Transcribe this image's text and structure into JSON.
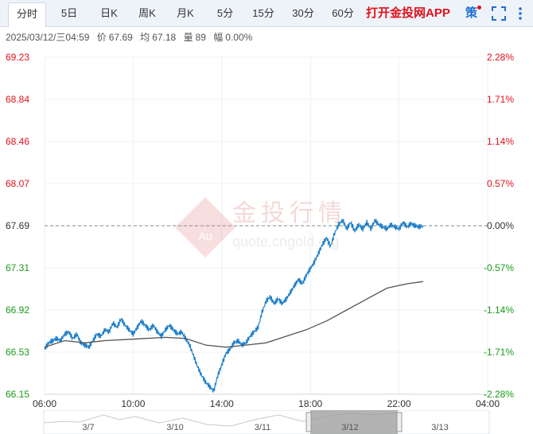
{
  "tabs": [
    {
      "label": "分时",
      "active": true
    },
    {
      "label": "5日"
    },
    {
      "label": "日K"
    },
    {
      "label": "周K"
    },
    {
      "label": "月K"
    },
    {
      "label": "5分"
    },
    {
      "label": "15分"
    },
    {
      "label": "30分"
    },
    {
      "label": "60分"
    }
  ],
  "header": {
    "app_link": "打开金投网APP",
    "strategy_label": "策"
  },
  "info": {
    "datetime": "2025/03/12/三04:59",
    "price_label": "价",
    "price": "67.69",
    "avg_label": "均",
    "avg": "67.18",
    "volume_label": "量",
    "volume": "89",
    "change_label": "幅",
    "change": "0.00%"
  },
  "watermark": {
    "logo_text": "Au",
    "brand": "金投行情",
    "url": "quote.cngold.org"
  },
  "colors": {
    "up": "#e0111a",
    "down": "#1a9a1a",
    "price_line": "#1f7fc8",
    "avg_line": "#555555",
    "reference": "#333333"
  },
  "chart_data": {
    "type": "line",
    "y_ticks_left": [
      "69.23",
      "68.84",
      "68.46",
      "68.07",
      "67.69",
      "67.31",
      "66.92",
      "66.53",
      "66.15"
    ],
    "y_ticks_right": [
      "2.28%",
      "1.71%",
      "1.14%",
      "0.57%",
      "0.00%",
      "-0.57%",
      "-1.14%",
      "-1.71%",
      "-2.28%"
    ],
    "x_ticks": [
      "06:00",
      "10:00",
      "14:00",
      "18:00",
      "22:00",
      "04:00"
    ],
    "ylim": [
      66.15,
      69.23
    ],
    "reference_price": 67.69,
    "series": [
      {
        "role": "price",
        "points": [
          [
            0,
            66.56
          ],
          [
            0.2,
            66.62
          ],
          [
            0.4,
            66.64
          ],
          [
            0.6,
            66.66
          ],
          [
            0.8,
            66.64
          ],
          [
            1,
            66.7
          ],
          [
            1.2,
            66.72
          ],
          [
            1.4,
            66.66
          ],
          [
            1.6,
            66.7
          ],
          [
            1.8,
            66.62
          ],
          [
            2,
            66.6
          ],
          [
            2.2,
            66.58
          ],
          [
            2.4,
            66.64
          ],
          [
            2.6,
            66.7
          ],
          [
            2.8,
            66.68
          ],
          [
            3,
            66.74
          ],
          [
            3.2,
            66.72
          ],
          [
            3.4,
            66.8
          ],
          [
            3.6,
            66.76
          ],
          [
            3.8,
            66.84
          ],
          [
            4,
            66.78
          ],
          [
            4.2,
            66.74
          ],
          [
            4.4,
            66.7
          ],
          [
            4.6,
            66.76
          ],
          [
            4.8,
            66.82
          ],
          [
            5,
            66.78
          ],
          [
            5.2,
            66.74
          ],
          [
            5.4,
            66.78
          ],
          [
            5.6,
            66.72
          ],
          [
            5.8,
            66.68
          ],
          [
            6,
            66.74
          ],
          [
            6.2,
            66.78
          ],
          [
            6.4,
            66.74
          ],
          [
            6.6,
            66.7
          ],
          [
            6.8,
            66.72
          ],
          [
            7,
            66.66
          ],
          [
            7.2,
            66.6
          ],
          [
            7.4,
            66.5
          ],
          [
            7.6,
            66.4
          ],
          [
            7.8,
            66.32
          ],
          [
            8,
            66.26
          ],
          [
            8.2,
            66.22
          ],
          [
            8.4,
            66.18
          ],
          [
            8.6,
            66.32
          ],
          [
            8.8,
            66.42
          ],
          [
            9,
            66.52
          ],
          [
            9.2,
            66.56
          ],
          [
            9.4,
            66.62
          ],
          [
            9.6,
            66.64
          ],
          [
            9.8,
            66.6
          ],
          [
            10,
            66.62
          ],
          [
            10.2,
            66.68
          ],
          [
            10.4,
            66.72
          ],
          [
            10.6,
            66.76
          ],
          [
            10.8,
            66.9
          ],
          [
            11,
            67.0
          ],
          [
            11.2,
            67.04
          ],
          [
            11.4,
            66.98
          ],
          [
            11.6,
            67.02
          ],
          [
            11.8,
            66.98
          ],
          [
            12,
            67.02
          ],
          [
            12.2,
            67.08
          ],
          [
            12.4,
            67.14
          ],
          [
            12.6,
            67.2
          ],
          [
            12.8,
            67.16
          ],
          [
            13,
            67.24
          ],
          [
            13.2,
            67.3
          ],
          [
            13.4,
            67.36
          ],
          [
            13.6,
            67.44
          ],
          [
            13.8,
            67.52
          ],
          [
            14,
            67.58
          ],
          [
            14.2,
            67.5
          ],
          [
            14.4,
            67.62
          ],
          [
            14.6,
            67.7
          ],
          [
            14.8,
            67.74
          ],
          [
            15,
            67.66
          ],
          [
            15.2,
            67.72
          ],
          [
            15.4,
            67.64
          ],
          [
            15.6,
            67.7
          ],
          [
            15.8,
            67.66
          ],
          [
            16,
            67.72
          ],
          [
            16.2,
            67.66
          ],
          [
            16.4,
            67.74
          ],
          [
            16.6,
            67.7
          ],
          [
            16.8,
            67.68
          ],
          [
            17,
            67.66
          ],
          [
            17.2,
            67.7
          ],
          [
            17.4,
            67.68
          ],
          [
            17.6,
            67.66
          ],
          [
            17.8,
            67.72
          ],
          [
            18,
            67.68
          ],
          [
            18.2,
            67.71
          ],
          [
            18.4,
            67.69
          ],
          [
            18.6,
            67.68
          ],
          [
            18.8,
            67.69
          ]
        ]
      },
      {
        "role": "average",
        "points": [
          [
            0,
            66.58
          ],
          [
            1,
            66.64
          ],
          [
            2,
            66.62
          ],
          [
            3,
            66.64
          ],
          [
            4,
            66.65
          ],
          [
            5,
            66.66
          ],
          [
            6,
            66.67
          ],
          [
            7,
            66.66
          ],
          [
            8,
            66.6
          ],
          [
            9,
            66.58
          ],
          [
            10,
            66.6
          ],
          [
            11,
            66.62
          ],
          [
            12,
            66.68
          ],
          [
            13,
            66.74
          ],
          [
            14,
            66.82
          ],
          [
            15,
            66.92
          ],
          [
            16,
            67.02
          ],
          [
            17,
            67.12
          ],
          [
            18,
            67.16
          ],
          [
            18.8,
            67.18
          ]
        ]
      }
    ]
  },
  "navigator": {
    "labels": [
      "3/7",
      "3/10",
      "3/11",
      "3/12",
      "3/13"
    ]
  }
}
